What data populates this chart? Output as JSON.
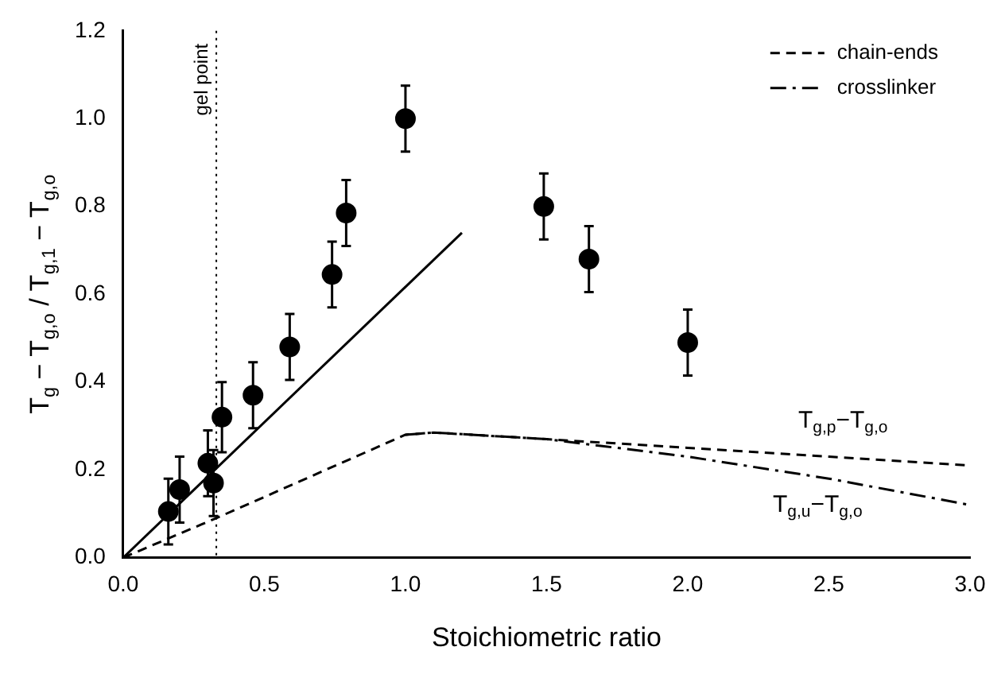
{
  "chart_data": {
    "type": "scatter",
    "xlabel": "Stoichiometric ratio",
    "ylabel": "T$_{g}$ − T$_{g,o}$ / T$_{g,1}$ − T$_{g,o}$",
    "xlim": [
      0,
      3
    ],
    "xticks": [
      {
        "value": 0,
        "label": "0.0"
      },
      {
        "value": 0.5,
        "label": "0.5"
      },
      {
        "value": 1,
        "label": "1.0"
      },
      {
        "value": 1.5,
        "label": "1.5"
      },
      {
        "value": 2,
        "label": "2.0"
      },
      {
        "value": 2.5,
        "label": "2.5"
      },
      {
        "value": 3,
        "label": "3.0"
      }
    ],
    "ylim": [
      0,
      1.2
    ],
    "yticks": [
      {
        "value": 0,
        "label": "0.0"
      },
      {
        "value": 0.2,
        "label": "0.2"
      },
      {
        "value": 0.4,
        "label": "0.4"
      },
      {
        "value": 0.6,
        "label": "0.6"
      },
      {
        "value": 0.8,
        "label": "0.8"
      },
      {
        "value": 1,
        "label": "1.0"
      },
      {
        "value": 1.2,
        "label": "1.2"
      }
    ],
    "grid": false,
    "legend": "top right",
    "marker": "circle",
    "series": [
      {
        "type": "scatter",
        "color": "#000000",
        "x": [
          0.16,
          0.2,
          0.3,
          0.32,
          0.35,
          0.46,
          0.59,
          0.74,
          0.79,
          1.0,
          1.49,
          1.65,
          2.0
        ],
        "values": [
          0.105,
          0.155,
          0.215,
          0.17,
          0.32,
          0.37,
          0.48,
          0.645,
          0.785,
          1.0,
          0.8,
          0.68,
          0.49
        ],
        "errors": [
          0.075,
          0.075,
          0.075,
          0.075,
          0.08,
          0.075,
          0.075,
          0.075,
          0.075,
          0.075,
          0.075,
          0.075,
          0.075
        ]
      },
      {
        "type": "line",
        "color": "#000000",
        "line_style": "solid",
        "marker": "none",
        "x": [
          0,
          1.2
        ],
        "values": [
          0,
          0.74
        ]
      },
      {
        "type": "line",
        "name": "chain-ends",
        "color": "#000000",
        "line_style": "dashed",
        "marker": "none",
        "x": [
          0,
          0.33,
          1.0,
          1.1,
          1.5,
          2.0,
          2.5,
          3.0
        ],
        "values": [
          0,
          0.09,
          0.28,
          0.285,
          0.27,
          0.25,
          0.23,
          0.21
        ]
      },
      {
        "type": "line",
        "name": "crosslinker",
        "color": "#000000",
        "line_style": "dashdot",
        "marker": "none",
        "x": [
          1.0,
          1.1,
          1.5,
          2.0,
          2.5,
          3.0
        ],
        "values": [
          0.28,
          0.285,
          0.27,
          0.23,
          0.18,
          0.12
        ]
      }
    ],
    "ref_lines": [
      {
        "axis": "x",
        "value": 0.33,
        "label": "gel point",
        "line_style": "dotted",
        "color": "#000000"
      }
    ],
    "annotations": [
      "T$_{g,p}$−T$_{g,o}$",
      "T$_{g,u}$−T$_{g,o}$"
    ]
  }
}
